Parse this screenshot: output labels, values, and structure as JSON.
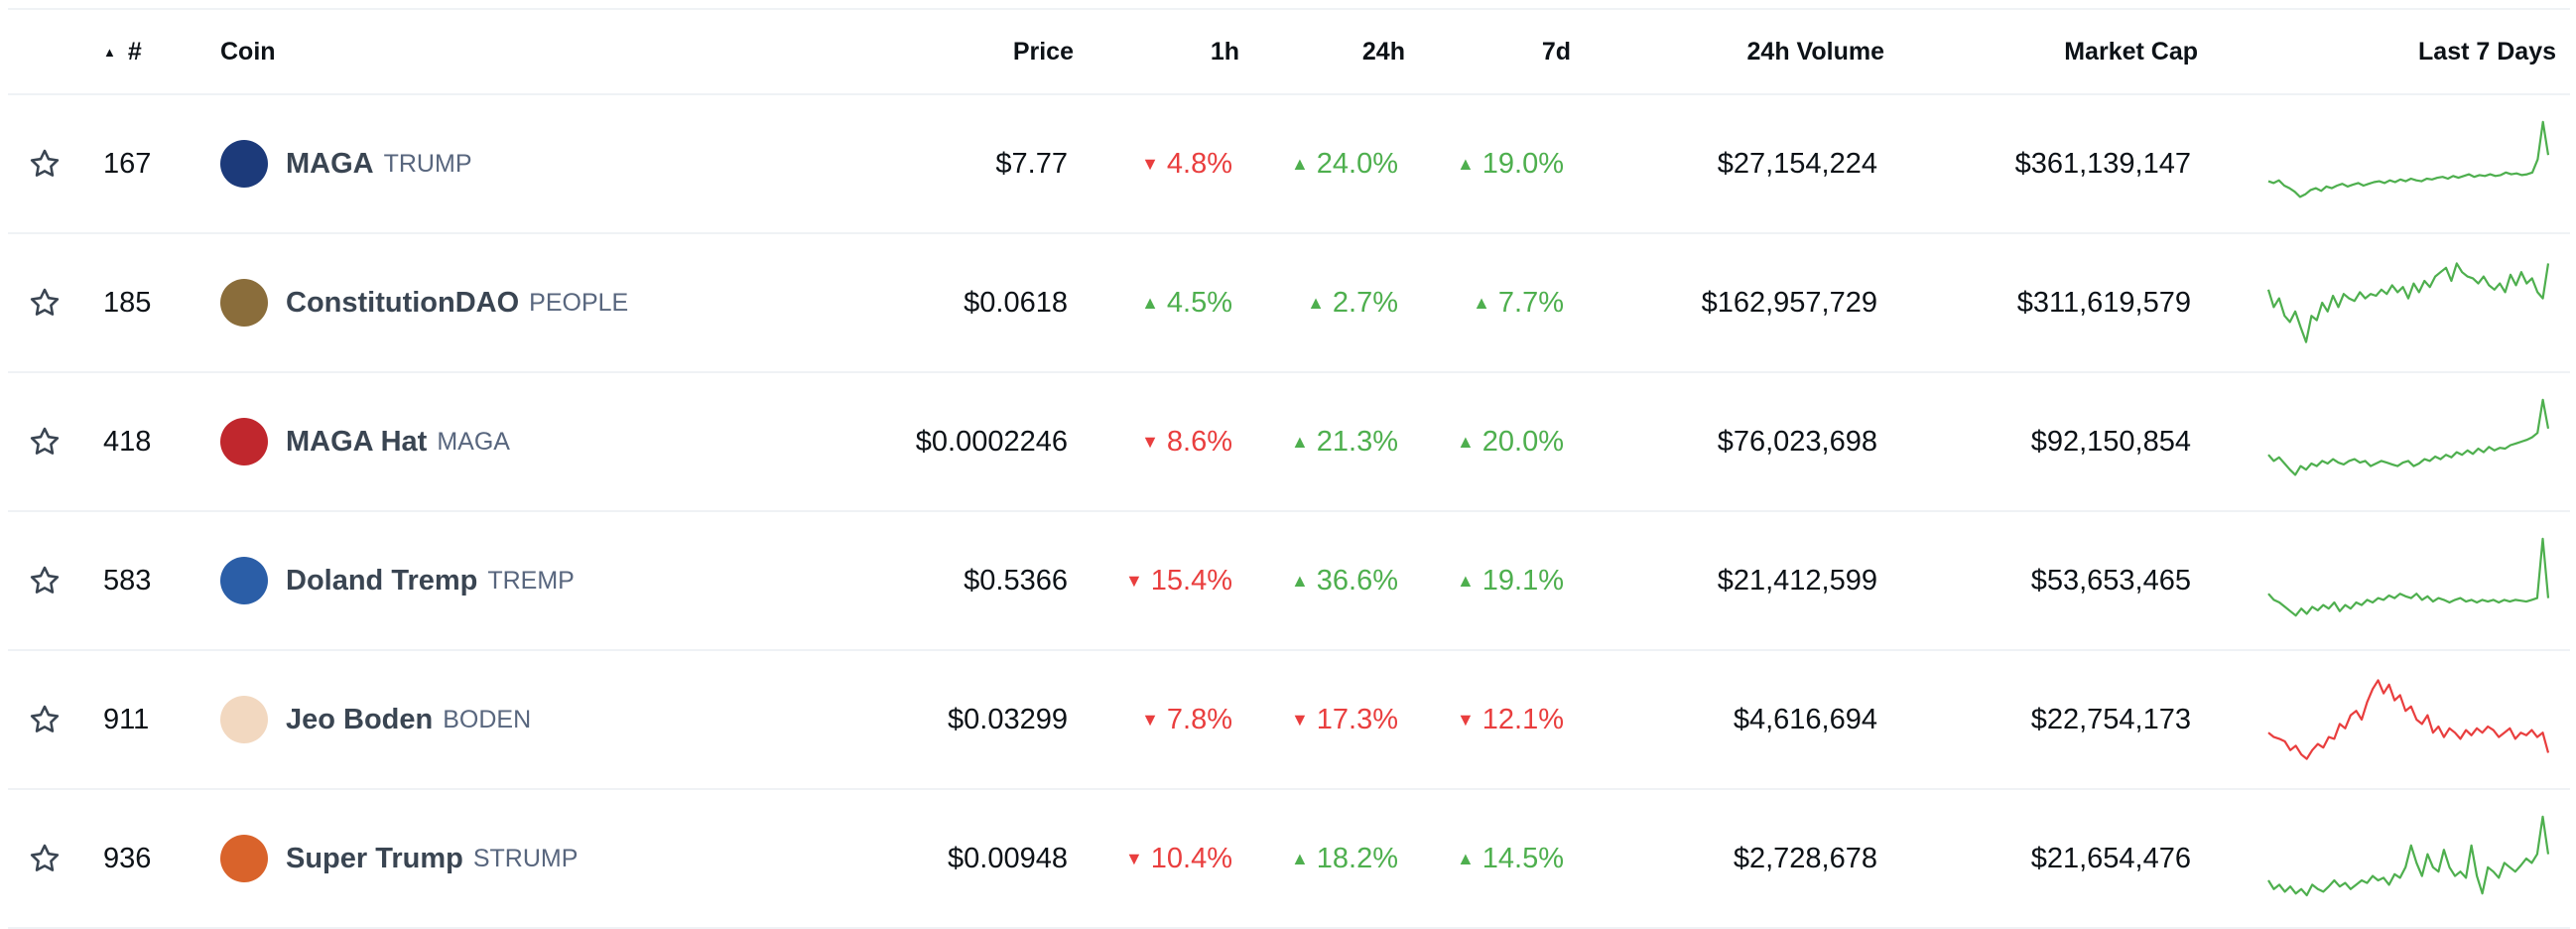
{
  "header": {
    "sort_icon": "▲",
    "rank": "#",
    "coin": "Coin",
    "price": "Price",
    "h1": "1h",
    "h24": "24h",
    "d7": "7d",
    "volume": "24h Volume",
    "market_cap": "Market Cap",
    "last7": "Last 7 Days"
  },
  "colors": {
    "up": "#4eaf4e",
    "down": "#e93e3e",
    "border": "#eff2f5"
  },
  "rows": [
    {
      "rank": "167",
      "name": "MAGA",
      "symbol": "TRUMP",
      "price": "$7.77",
      "h1": "4.8%",
      "h1_dir": "down",
      "h24": "24.0%",
      "h24_dir": "up",
      "d7": "19.0%",
      "d7_dir": "up",
      "volume": "$27,154,224",
      "market_cap": "$361,139,147",
      "logo_color": "#1c3a7a",
      "spark_dir": "up",
      "spark": [
        0.3,
        0.28,
        0.31,
        0.25,
        0.22,
        0.18,
        0.12,
        0.15,
        0.2,
        0.22,
        0.19,
        0.24,
        0.22,
        0.25,
        0.27,
        0.24,
        0.26,
        0.28,
        0.25,
        0.27,
        0.29,
        0.3,
        0.28,
        0.31,
        0.29,
        0.32,
        0.3,
        0.33,
        0.31,
        0.3,
        0.33,
        0.32,
        0.34,
        0.35,
        0.33,
        0.36,
        0.34,
        0.36,
        0.38,
        0.35,
        0.37,
        0.36,
        0.38,
        0.36,
        0.37,
        0.4,
        0.38,
        0.39,
        0.37,
        0.38,
        0.4,
        0.55,
        0.98,
        0.6
      ]
    },
    {
      "rank": "185",
      "name": "ConstitutionDAO",
      "symbol": "PEOPLE",
      "price": "$0.0618",
      "h1": "4.5%",
      "h1_dir": "up",
      "h24": "2.7%",
      "h24_dir": "up",
      "d7": "7.7%",
      "d7_dir": "up",
      "volume": "$162,957,729",
      "market_cap": "$311,619,579",
      "logo_color": "#8a6d3b",
      "spark_dir": "up",
      "spark": [
        0.65,
        0.45,
        0.55,
        0.35,
        0.28,
        0.4,
        0.22,
        0.05,
        0.35,
        0.3,
        0.5,
        0.4,
        0.58,
        0.45,
        0.6,
        0.55,
        0.52,
        0.62,
        0.55,
        0.6,
        0.58,
        0.65,
        0.6,
        0.7,
        0.62,
        0.68,
        0.55,
        0.72,
        0.62,
        0.75,
        0.68,
        0.8,
        0.85,
        0.9,
        0.75,
        0.95,
        0.85,
        0.8,
        0.78,
        0.72,
        0.8,
        0.7,
        0.65,
        0.72,
        0.62,
        0.82,
        0.7,
        0.85,
        0.72,
        0.78,
        0.62,
        0.55,
        0.95
      ]
    },
    {
      "rank": "418",
      "name": "MAGA Hat",
      "symbol": "MAGA",
      "price": "$0.0002246",
      "h1": "8.6%",
      "h1_dir": "down",
      "h24": "21.3%",
      "h24_dir": "up",
      "d7": "20.0%",
      "d7_dir": "up",
      "volume": "$76,023,698",
      "market_cap": "$92,150,854",
      "logo_color": "#c0272d",
      "spark_dir": "up",
      "spark": [
        0.35,
        0.28,
        0.32,
        0.25,
        0.18,
        0.12,
        0.22,
        0.18,
        0.25,
        0.22,
        0.28,
        0.25,
        0.3,
        0.26,
        0.24,
        0.28,
        0.3,
        0.26,
        0.28,
        0.22,
        0.25,
        0.28,
        0.26,
        0.24,
        0.22,
        0.26,
        0.28,
        0.22,
        0.25,
        0.3,
        0.28,
        0.33,
        0.3,
        0.35,
        0.32,
        0.38,
        0.35,
        0.4,
        0.36,
        0.42,
        0.38,
        0.44,
        0.4,
        0.43,
        0.42,
        0.46,
        0.48,
        0.5,
        0.52,
        0.55,
        0.6,
        0.98,
        0.65
      ]
    },
    {
      "rank": "583",
      "name": "Doland Tremp",
      "symbol": "TREMP",
      "price": "$0.5366",
      "h1": "15.4%",
      "h1_dir": "down",
      "h24": "36.6%",
      "h24_dir": "up",
      "d7": "19.1%",
      "d7_dir": "up",
      "volume": "$21,412,599",
      "market_cap": "$53,653,465",
      "logo_color": "#2b5ea7",
      "spark_dir": "up",
      "spark": [
        0.35,
        0.28,
        0.25,
        0.2,
        0.15,
        0.1,
        0.18,
        0.12,
        0.2,
        0.16,
        0.22,
        0.18,
        0.25,
        0.15,
        0.22,
        0.18,
        0.25,
        0.22,
        0.28,
        0.25,
        0.3,
        0.28,
        0.33,
        0.3,
        0.35,
        0.32,
        0.3,
        0.35,
        0.28,
        0.32,
        0.26,
        0.3,
        0.28,
        0.25,
        0.28,
        0.3,
        0.26,
        0.28,
        0.25,
        0.28,
        0.26,
        0.28,
        0.25,
        0.28,
        0.26,
        0.28,
        0.27,
        0.26,
        0.28,
        0.3,
        0.98,
        0.3
      ]
    },
    {
      "rank": "911",
      "name": "Jeo Boden",
      "symbol": "BODEN",
      "price": "$0.03299",
      "h1": "7.8%",
      "h1_dir": "down",
      "h24": "17.3%",
      "h24_dir": "down",
      "d7": "12.1%",
      "d7_dir": "down",
      "volume": "$4,616,694",
      "market_cap": "$22,754,173",
      "logo_color": "#f2d8c0",
      "spark_dir": "down",
      "spark": [
        0.35,
        0.3,
        0.28,
        0.25,
        0.15,
        0.2,
        0.1,
        0.05,
        0.15,
        0.22,
        0.18,
        0.3,
        0.28,
        0.45,
        0.4,
        0.55,
        0.6,
        0.5,
        0.7,
        0.85,
        0.95,
        0.8,
        0.9,
        0.72,
        0.78,
        0.6,
        0.65,
        0.5,
        0.45,
        0.55,
        0.35,
        0.42,
        0.3,
        0.4,
        0.35,
        0.28,
        0.38,
        0.32,
        0.4,
        0.35,
        0.42,
        0.38,
        0.3,
        0.35,
        0.4,
        0.28,
        0.35,
        0.32,
        0.38,
        0.3,
        0.35,
        0.12
      ]
    },
    {
      "rank": "936",
      "name": "Super Trump",
      "symbol": "STRUMP",
      "price": "$0.00948",
      "h1": "10.4%",
      "h1_dir": "down",
      "h24": "18.2%",
      "h24_dir": "up",
      "d7": "14.5%",
      "d7_dir": "up",
      "volume": "$2,728,678",
      "market_cap": "$21,654,476",
      "logo_color": "#d9632b",
      "spark_dir": "up",
      "spark": [
        0.25,
        0.15,
        0.2,
        0.12,
        0.18,
        0.1,
        0.15,
        0.08,
        0.2,
        0.15,
        0.12,
        0.18,
        0.25,
        0.18,
        0.22,
        0.15,
        0.2,
        0.25,
        0.22,
        0.3,
        0.25,
        0.28,
        0.2,
        0.32,
        0.28,
        0.4,
        0.65,
        0.45,
        0.3,
        0.55,
        0.4,
        0.35,
        0.6,
        0.4,
        0.3,
        0.35,
        0.28,
        0.65,
        0.3,
        0.1,
        0.4,
        0.35,
        0.28,
        0.45,
        0.4,
        0.35,
        0.42,
        0.5,
        0.45,
        0.55,
        0.98,
        0.55
      ]
    }
  ]
}
